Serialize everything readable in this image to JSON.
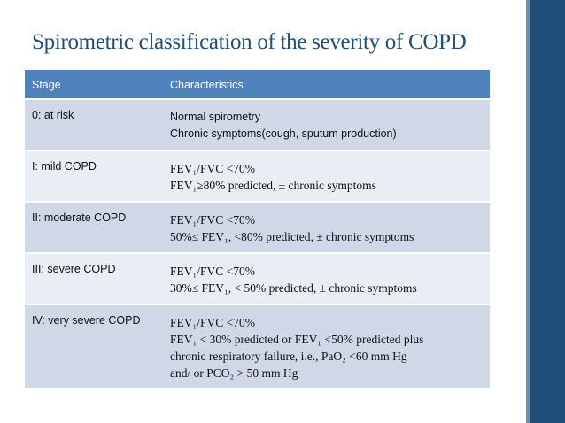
{
  "slide": {
    "title": "Spirometric classification of the severity of COPD",
    "colors": {
      "title": "#1f4e79",
      "header": "#4f81bd",
      "row_dark": "#d0d8e8",
      "row_light": "#e9edf4",
      "band": "#1f4e79"
    }
  },
  "table": {
    "headers": [
      "Stage",
      "Characteristics"
    ],
    "rows": [
      {
        "stage": "0: at risk",
        "lines": [
          "Normal spirometry",
          "Chronic symptoms(cough, sputum production)"
        ]
      },
      {
        "stage": "I: mild COPD",
        "lines": [
          "FEV₁/FVC <70%",
          "FEV₁≥80% predicted, ± chronic symptoms"
        ]
      },
      {
        "stage": "II: moderate COPD",
        "lines": [
          "FEV₁/FVC <70%",
          "50%≤ FEV₁, <80% predicted, ± chronic symptoms"
        ]
      },
      {
        "stage": "III: severe COPD",
        "lines": [
          "FEV₁/FVC <70%",
          "30%≤ FEV₁, < 50% predicted, ± chronic symptoms"
        ]
      },
      {
        "stage": "IV: very severe COPD",
        "lines": [
          "FEV₁/FVC <70%",
          "FEV₁ < 30% predicted or FEV₁ <50% predicted plus",
          "chronic respiratory failure, i.e., PaO₂ <60 mm Hg",
          "and/ or PCO₂ > 50 mm Hg"
        ]
      }
    ]
  }
}
